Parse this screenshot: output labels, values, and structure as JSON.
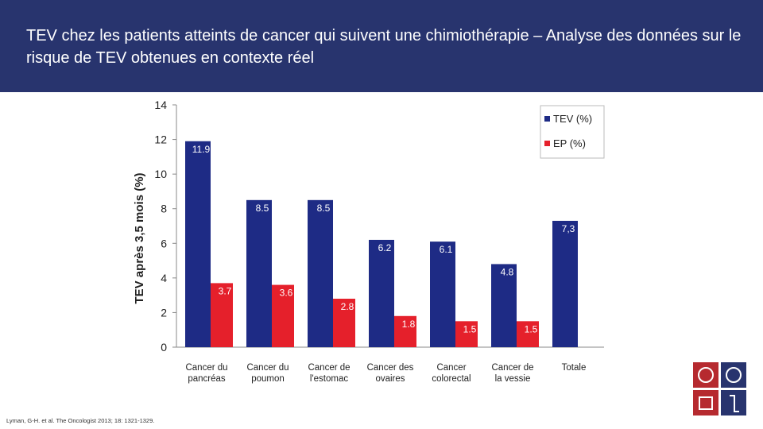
{
  "chart_data": {
    "type": "bar",
    "title": "TEV chez les patients atteints de cancer qui suivent une chimiothérapie – Analyse des données sur le risque de TEV obtenues en contexte réel",
    "y_label": "TEV après 3,5 mois (%)",
    "categories": [
      "Cancer du\npancréas",
      "Cancer du\npoumon",
      "Cancer de\nl'estomac",
      "Cancer des\novaires",
      "Cancer\ncolorectal",
      "Cancer de\nla vessie",
      "Totale"
    ],
    "series": [
      {
        "name": "TEV (%)",
        "color": "#1e2b85",
        "values": [
          11.9,
          8.5,
          8.5,
          6.2,
          6.1,
          4.8,
          7.3
        ],
        "value_labels": [
          "11.9",
          "8.5",
          "8.5",
          "6.2",
          "6.1",
          "4.8",
          "7,3"
        ]
      },
      {
        "name": "EP (%)",
        "color": "#e5202b",
        "values": [
          3.7,
          3.6,
          2.8,
          1.8,
          1.5,
          1.5,
          null
        ]
      }
    ],
    "ylim": [
      0,
      14
    ],
    "yticks": [
      0,
      2,
      4,
      6,
      8,
      10,
      12,
      14
    ],
    "grid": false,
    "legend": "top-right",
    "footnote": "Lyman, G-H. et al. The Oncologist 2013; 18: 1321-1329."
  }
}
